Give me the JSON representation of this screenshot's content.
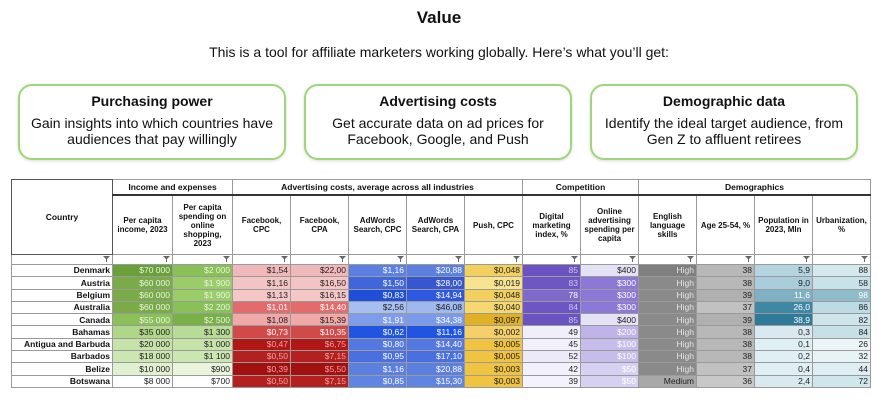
{
  "header": {
    "title": "Value",
    "subtitle": "This is a tool for affiliate marketers working globally. Here’s what you’ll get:"
  },
  "cards": [
    {
      "title": "Purchasing power",
      "text": "Gain insights into which countries have audiences that pay willingly"
    },
    {
      "title": "Advertising costs",
      "text": "Get accurate data on ad prices for Facebook, Google, and Push"
    },
    {
      "title": "Demographic data",
      "text": "Identify the ideal target audience, from Gen Z to affluent retirees"
    }
  ],
  "table": {
    "country_label": "Country",
    "filter_icon": "filter-icon",
    "groups": [
      {
        "label": "Income and expenses",
        "span": 2
      },
      {
        "label": "Advertising costs, average across all industries",
        "span": 5
      },
      {
        "label": "Competition",
        "span": 2
      },
      {
        "label": "Demographics",
        "span": 4
      }
    ],
    "columns": [
      "Per capita income, 2023",
      "Per capita spending on online shopping, 2023",
      "Facebook, CPC",
      "Facebook, CPA",
      "AdWords Search, CPC",
      "AdWords Search, CPA",
      "Push, CPC",
      "Digital marketing index, %",
      "Online advertising spending per capita",
      "English language skills",
      "Age 25-54, %",
      "Population in 2023, Mln",
      "Urbanization, %"
    ],
    "rows": [
      {
        "country": "Denmark",
        "cells": [
          "$70 000",
          "$2 000",
          "$1,54",
          "$22,00",
          "$1,16",
          "$20,88",
          "$0,048",
          "85",
          "$400",
          "High",
          "38",
          "5,9",
          "88"
        ]
      },
      {
        "country": "Austria",
        "cells": [
          "$60 000",
          "$1 900",
          "$1,16",
          "$16,50",
          "$1,50",
          "$28,00",
          "$0,019",
          "83",
          "$300",
          "High",
          "38",
          "9,0",
          "58"
        ]
      },
      {
        "country": "Belgium",
        "cells": [
          "$60 000",
          "$1 900",
          "$1,13",
          "$16,15",
          "$0,83",
          "$14,94",
          "$0,048",
          "78",
          "$300",
          "High",
          "39",
          "11,6",
          "98"
        ]
      },
      {
        "country": "Australia",
        "cells": [
          "$60 000",
          "$2 200",
          "$1,01",
          "$14,40",
          "$2,56",
          "$46,08",
          "$0,040",
          "84",
          "$300",
          "High",
          "37",
          "26,0",
          "86"
        ]
      },
      {
        "country": "Canada",
        "cells": [
          "$55 000",
          "$2 500",
          "$1,08",
          "$15,39",
          "$1,91",
          "$34,38",
          "$0,097",
          "85",
          "$400",
          "High",
          "39",
          "38,9",
          "82"
        ]
      },
      {
        "country": "Bahamas",
        "cells": [
          "$35 000",
          "$1 300",
          "$0,73",
          "$10,35",
          "$0,62",
          "$11,16",
          "$0,002",
          "49",
          "$200",
          "High",
          "38",
          "0,3",
          "84"
        ]
      },
      {
        "country": "Antigua and Barbuda",
        "cells": [
          "$20 000",
          "$1 000",
          "$0,47",
          "$6,75",
          "$0,80",
          "$14,40",
          "$0,005",
          "45",
          "$100",
          "High",
          "38",
          "0,1",
          "26"
        ]
      },
      {
        "country": "Barbados",
        "cells": [
          "$18 000",
          "$1 100",
          "$0,50",
          "$7,15",
          "$0,95",
          "$17,10",
          "$0,005",
          "52",
          "$100",
          "High",
          "38",
          "0,2",
          "32"
        ]
      },
      {
        "country": "Belize",
        "cells": [
          "$10 000",
          "$900",
          "$0,39",
          "$5,50",
          "$1,16",
          "$20,88",
          "$0,003",
          "42",
          "$50",
          "High",
          "37",
          "0,4",
          "44"
        ]
      },
      {
        "country": "Botswana",
        "cells": [
          "$8 000",
          "$700",
          "$0,50",
          "$7,15",
          "$0,85",
          "$15,30",
          "$0,003",
          "39",
          "$50",
          "Medium",
          "36",
          "2,4",
          "72"
        ]
      }
    ],
    "colors": [
      [
        "#6a9f3a",
        "#8ac058",
        "#f0b8b8",
        "#f0b8b8",
        "#5b80e0",
        "#5b80e0",
        "#f2d060",
        "#6a52c0",
        "#e4e2f5",
        "#7f7f7f",
        "#b8b8b8",
        "#b4d4e0",
        "#d4e8ee"
      ],
      [
        "#7aab48",
        "#9acc68",
        "#f4c4c4",
        "#f4c4c4",
        "#3f66dd",
        "#3557d2",
        "#f8e48e",
        "#6e56c4",
        "#8c78d6",
        "#8a8a8a",
        "#b8b8b8",
        "#a9cddb",
        "#c7e2e9"
      ],
      [
        "#7aab48",
        "#9acc68",
        "#f4c6c6",
        "#f4c6c6",
        "#1f4fd9",
        "#2f58e0",
        "#f2d060",
        "#7f6acb",
        "#8c78d6",
        "#8a8a8a",
        "#b0b0b0",
        "#7fb0c3",
        "#8fbbcb"
      ],
      [
        "#7aab48",
        "#8ac058",
        "#e46b6b",
        "#e46b6b",
        "#a7bff0",
        "#9fb8ee",
        "#f5d870",
        "#6d56c4",
        "#8c78d6",
        "#8a8a8a",
        "#c1c1c1",
        "#3f88a5",
        "#bcdbe5"
      ],
      [
        "#8ac058",
        "#7ab048",
        "#f0a8a8",
        "#f0a8a8",
        "#7d9deb",
        "#7a9aeb",
        "#e0b025",
        "#6a52c0",
        "#e4e2f5",
        "#8a8a8a",
        "#b0b0b0",
        "#2f7a98",
        "#cfe5ec"
      ],
      [
        "#b0d68a",
        "#b8dc98",
        "#d04a4a",
        "#d04a4a",
        "#1f55e0",
        "#1f55e0",
        "#f5d06a",
        "#f0eef9",
        "#bfb3e8",
        "#8a8a8a",
        "#b8b8b8",
        "#d8eaf0",
        "#c6e0e8"
      ],
      [
        "#c7e3aa",
        "#c7e3aa",
        "#b01818",
        "#b01818",
        "#5577e0",
        "#5577e0",
        "#f0c440",
        "#f2f0fa",
        "#c6bdea",
        "#8a8a8a",
        "#b8b8b8",
        "#e0eff4",
        "#ebf4f7"
      ],
      [
        "#cbe6b0",
        "#cbe6b0",
        "#b32020",
        "#b32020",
        "#4a6fe0",
        "#4a6fe0",
        "#f0c440",
        "#ece9f8",
        "#c6bdea",
        "#8a8a8a",
        "#b8b8b8",
        "#e0eff4",
        "#e8f3f6"
      ],
      [
        "#e0f0d0",
        "#e8f4dc",
        "#a31010",
        "#a31010",
        "#5b80e0",
        "#5b80e0",
        "#f0c440",
        "#f2f0fa",
        "#d6d0f2",
        "#8a8a8a",
        "#c1c1c1",
        "#e0eff4",
        "#dfeef3"
      ],
      [
        "#ffffff",
        "#ffffff",
        "#b32020",
        "#b32020",
        "#5f84e2",
        "#5f84e2",
        "#f0c440",
        "#f4f2fb",
        "#d6d0f2",
        "#a8a8a8",
        "#c8c8c8",
        "#d8eaf0",
        "#d0e6ed"
      ]
    ],
    "text_colors": [
      [
        "#e8f4e0",
        "#e8f4e0",
        "#222",
        "#222",
        "#fff",
        "#fff",
        "#222",
        "#cfc8f0",
        "#222",
        "#e6e6e6",
        "#222",
        "#222",
        "#222"
      ],
      [
        "#e8f4e0",
        "#e8f4e0",
        "#222",
        "#222",
        "#fff",
        "#fff",
        "#222",
        "#cfc8f0",
        "#fff",
        "#e6e6e6",
        "#222",
        "#222",
        "#222"
      ],
      [
        "#e8f4e0",
        "#e8f4e0",
        "#222",
        "#222",
        "#fff",
        "#fff",
        "#222",
        "#fff",
        "#fff",
        "#e6e6e6",
        "#222",
        "#fff",
        "#fff"
      ],
      [
        "#e8f4e0",
        "#e8f4e0",
        "#fff",
        "#fff",
        "#222",
        "#222",
        "#222",
        "#cfc8f0",
        "#fff",
        "#e6e6e6",
        "#222",
        "#fff",
        "#222"
      ],
      [
        "#e8f4e0",
        "#e8f4e0",
        "#222",
        "#222",
        "#fff",
        "#fff",
        "#222",
        "#cfc8f0",
        "#222",
        "#e6e6e6",
        "#222",
        "#fff",
        "#222"
      ],
      [
        "#222",
        "#222",
        "#fff",
        "#fff",
        "#fff",
        "#fff",
        "#222",
        "#222",
        "#fff",
        "#e6e6e6",
        "#222",
        "#222",
        "#222"
      ],
      [
        "#222",
        "#222",
        "#f0a0a0",
        "#f0a0a0",
        "#fff",
        "#fff",
        "#222",
        "#222",
        "#fff",
        "#e6e6e6",
        "#222",
        "#222",
        "#222"
      ],
      [
        "#222",
        "#222",
        "#f0a0a0",
        "#f0a0a0",
        "#fff",
        "#fff",
        "#222",
        "#222",
        "#fff",
        "#e6e6e6",
        "#222",
        "#222",
        "#222"
      ],
      [
        "#222",
        "#222",
        "#f0a0a0",
        "#f0a0a0",
        "#fff",
        "#fff",
        "#222",
        "#222",
        "#fff",
        "#e6e6e6",
        "#222",
        "#222",
        "#222"
      ],
      [
        "#222",
        "#222",
        "#f0a0a0",
        "#f0a0a0",
        "#fff",
        "#fff",
        "#222",
        "#222",
        "#fff",
        "#222",
        "#222",
        "#222",
        "#222"
      ]
    ]
  }
}
